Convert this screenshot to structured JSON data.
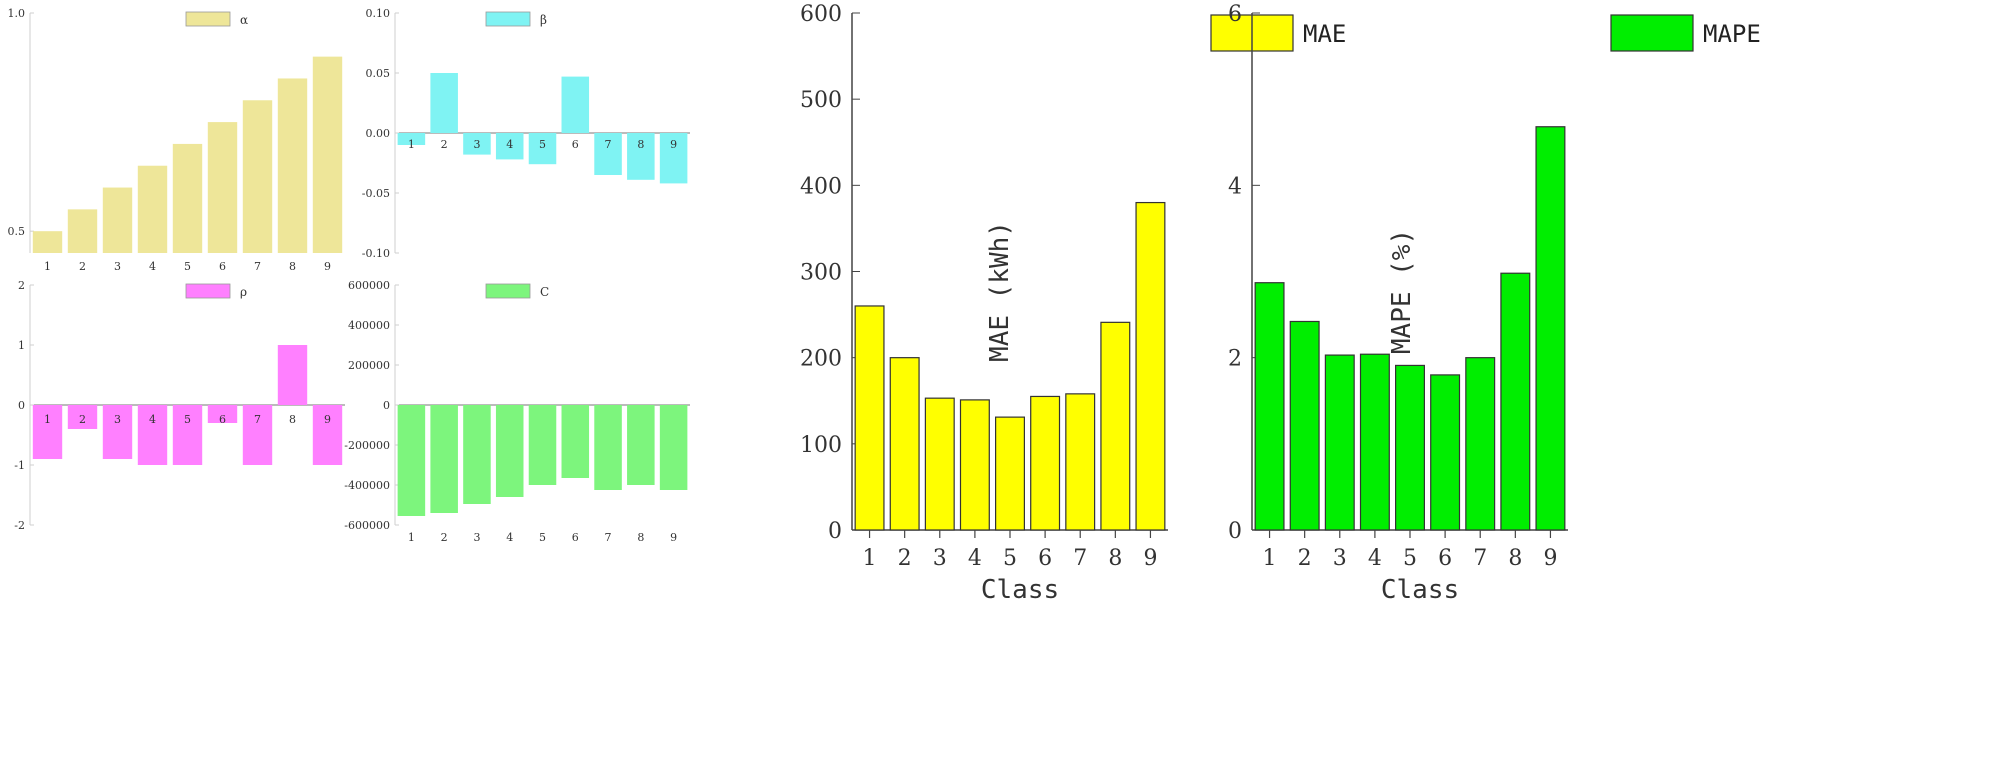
{
  "chart_data": [
    {
      "id": "alpha",
      "type": "bar",
      "legend": "α",
      "color": "#eee699",
      "categories": [
        "1",
        "2",
        "3",
        "4",
        "5",
        "6",
        "7",
        "8",
        "9"
      ],
      "values": [
        0.5,
        0.55,
        0.6,
        0.65,
        0.7,
        0.75,
        0.8,
        0.85,
        0.9
      ],
      "ylim": [
        0.45,
        1.0
      ],
      "yticks": [
        0.5,
        1.0
      ],
      "ytick_labels": [
        "0.5",
        "1.0"
      ],
      "cat_labels_inside": false
    },
    {
      "id": "beta",
      "type": "bar",
      "legend": "β",
      "color": "#7ff3f3",
      "categories": [
        "1",
        "2",
        "3",
        "4",
        "5",
        "6",
        "7",
        "8",
        "9"
      ],
      "values": [
        -0.01,
        0.05,
        -0.018,
        -0.022,
        -0.026,
        0.047,
        -0.035,
        -0.039,
        -0.042
      ],
      "ylim": [
        -0.1,
        0.1
      ],
      "yticks": [
        -0.1,
        -0.05,
        0,
        0.05,
        0.1
      ],
      "ytick_labels": [
        "-0.10",
        "-0.05",
        "0.00",
        "0.05",
        "0.10"
      ],
      "cat_labels_inside": true
    },
    {
      "id": "rho",
      "type": "bar",
      "legend": "ρ",
      "color": "#ff80ff",
      "categories": [
        "1",
        "2",
        "3",
        "4",
        "5",
        "6",
        "7",
        "8",
        "9"
      ],
      "values": [
        -0.9,
        -0.4,
        -0.9,
        -1.0,
        -1.0,
        -0.3,
        -1.0,
        1.0,
        -1.0
      ],
      "ylim": [
        -2,
        2
      ],
      "yticks": [
        -2,
        -1,
        0,
        1,
        2
      ],
      "ytick_labels": [
        "-2",
        "-1",
        "0",
        "1",
        "2"
      ],
      "cat_labels_inside": true
    },
    {
      "id": "c",
      "type": "bar",
      "legend": "C",
      "color": "#7df57d",
      "categories": [
        "1",
        "2",
        "3",
        "4",
        "5",
        "6",
        "7",
        "8",
        "9"
      ],
      "values": [
        -555000,
        -540000,
        -495000,
        -460000,
        -400000,
        -365000,
        -425000,
        -400000,
        -425000
      ],
      "ylim": [
        -600000,
        600000
      ],
      "yticks": [
        -600000,
        -400000,
        -200000,
        0,
        200000,
        400000,
        600000
      ],
      "ytick_labels": [
        "-600000",
        "-400000",
        "-200000",
        "0",
        "200000",
        "400000",
        "600000"
      ],
      "cat_labels_inside": false
    },
    {
      "id": "mae",
      "type": "bar",
      "legend": "MAE",
      "color": "#ffff00",
      "categories": [
        "1",
        "2",
        "3",
        "4",
        "5",
        "6",
        "7",
        "8",
        "9"
      ],
      "values": [
        260,
        200,
        153,
        151,
        131,
        155,
        158,
        241,
        380
      ],
      "ylim": [
        0,
        600
      ],
      "yticks": [
        0,
        100,
        200,
        300,
        400,
        500,
        600
      ],
      "ytick_labels": [
        "0",
        "100",
        "200",
        "300",
        "400",
        "500",
        "600"
      ],
      "xlabel": "Class",
      "ylabel": "MAE (kWh)"
    },
    {
      "id": "mape",
      "type": "bar",
      "legend": "MAPE",
      "color": "#00ee00",
      "categories": [
        "1",
        "2",
        "3",
        "4",
        "5",
        "6",
        "7",
        "8",
        "9"
      ],
      "values": [
        2.87,
        2.42,
        2.03,
        2.04,
        1.91,
        1.8,
        2.0,
        2.98,
        4.68
      ],
      "ylim": [
        0,
        6
      ],
      "yticks": [
        0,
        2,
        4,
        6
      ],
      "ytick_labels": [
        "0",
        "2",
        "4",
        "6"
      ],
      "xlabel": "Class",
      "ylabel": "MAPE (%)"
    }
  ]
}
